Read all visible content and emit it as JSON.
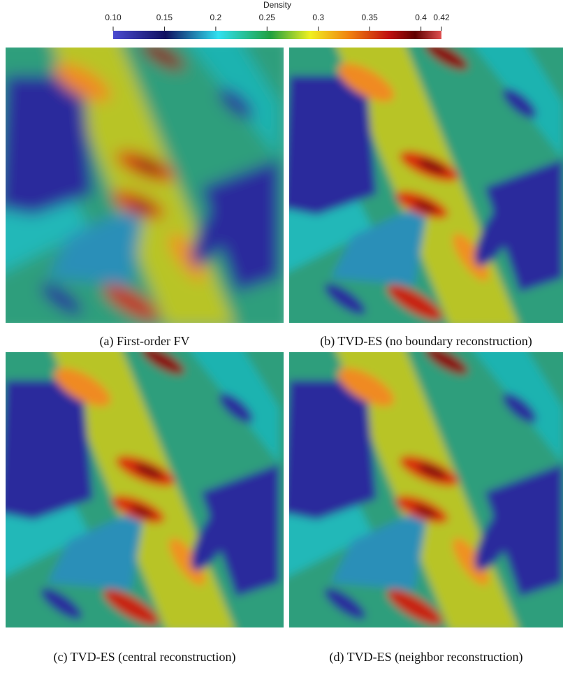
{
  "colorbar": {
    "title": "Density",
    "lim": [
      0.1,
      0.42
    ],
    "ticks": [
      {
        "value": 0.1,
        "label": "0.10"
      },
      0.15,
      0.2,
      0.25,
      0.3,
      0.35,
      0.4,
      0.42
    ]
  },
  "panels": [
    {
      "caption": "(a) First-order FV"
    },
    {
      "caption": "(b) TVD-ES (no boundary reconstruction)"
    },
    {
      "caption": "(c) TVD-ES (central reconstruction)"
    },
    {
      "caption": "(d) TVD-ES (neighbor reconstruction)"
    }
  ]
}
